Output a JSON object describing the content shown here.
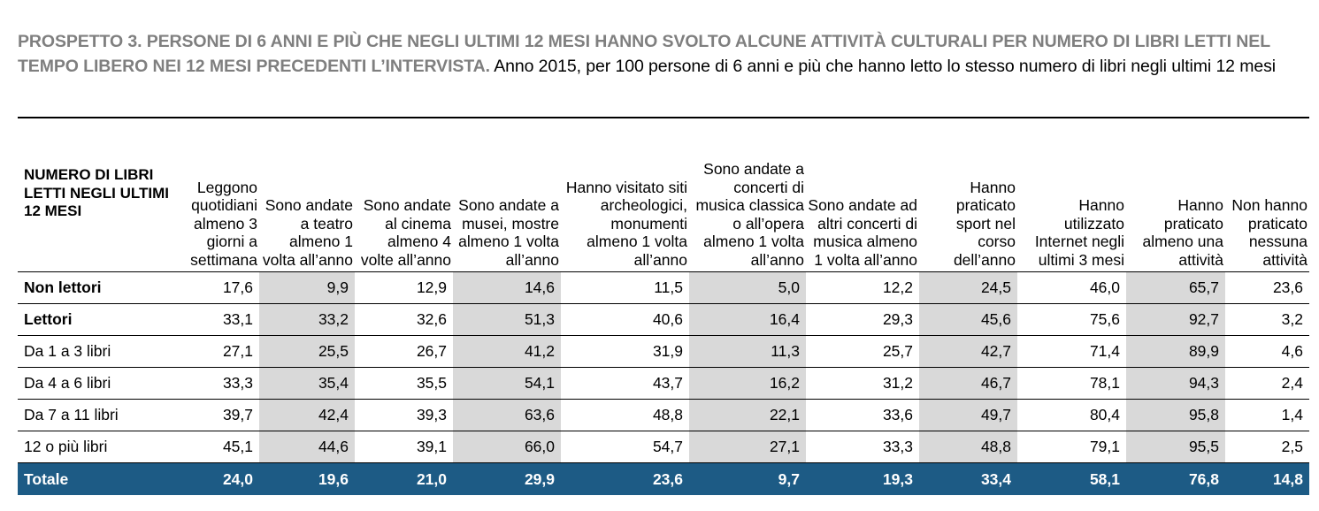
{
  "title": {
    "bold": "PROSPETTO 3. PERSONE DI 6 ANNI E PIÙ CHE NEGLI ULTIMI 12 MESI HANNO SVOLTO ALCUNE ATTIVITÀ CULTURALI PER NUMERO DI LIBRI LETTI NEL TEMPO LIBERO NEI 12 MESI PRECEDENTI L’INTERVISTA.",
    "normal": " Anno 2015, per 100 persone di 6 anni e più che hanno letto lo stesso numero di libri negli ultimi 12 mesi"
  },
  "table": {
    "header_first": "NUMERO DI LIBRI LETTI NEGLI ULTIMI 12 MESI",
    "columns": [
      "Leggono quotidiani almeno 3 giorni a settimana",
      "Sono andate a teatro almeno 1 volta all’anno",
      "Sono andate al cinema almeno 4 volte all’anno",
      "Sono andate a musei, mostre almeno 1 volta all’anno",
      "Hanno visitato siti archeologici, monumenti almeno 1 volta all’anno",
      "Sono andate a concerti di musica classica o all’opera almeno 1 volta all’anno",
      "Sono andate ad altri concerti di musica almeno 1 volta all’anno",
      "Hanno praticato sport nel corso dell’anno",
      "Hanno utilizzato Internet negli ultimi 3 mesi",
      "Hanno praticato almeno una attività",
      "Non hanno praticato nessuna attività"
    ],
    "rows": [
      {
        "label": "Non lettori",
        "values": [
          "17,6",
          "9,9",
          "12,9",
          "14,6",
          "11,5",
          "5,0",
          "12,2",
          "24,5",
          "46,0",
          "65,7",
          "23,6"
        ]
      },
      {
        "label": "Lettori",
        "values": [
          "33,1",
          "33,2",
          "32,6",
          "51,3",
          "40,6",
          "16,4",
          "29,3",
          "45,6",
          "75,6",
          "92,7",
          "3,2"
        ]
      },
      {
        "label": "Da 1 a 3 libri",
        "values": [
          "27,1",
          "25,5",
          "26,7",
          "41,2",
          "31,9",
          "11,3",
          "25,7",
          "42,7",
          "71,4",
          "89,9",
          "4,6"
        ]
      },
      {
        "label": "Da 4 a 6 libri",
        "values": [
          "33,3",
          "35,4",
          "35,5",
          "54,1",
          "43,7",
          "16,2",
          "31,2",
          "46,7",
          "78,1",
          "94,3",
          "2,4"
        ]
      },
      {
        "label": "Da 7 a 11 libri",
        "values": [
          "39,7",
          "42,4",
          "39,3",
          "63,6",
          "48,8",
          "22,1",
          "33,6",
          "49,7",
          "80,4",
          "95,8",
          "1,4"
        ]
      },
      {
        "label": "12 o più libri",
        "values": [
          "45,1",
          "44,6",
          "39,1",
          "66,0",
          "54,7",
          "27,1",
          "33,3",
          "48,8",
          "79,1",
          "95,5",
          "2,5"
        ]
      },
      {
        "label": "Totale",
        "values": [
          "24,0",
          "19,6",
          "21,0",
          "29,9",
          "23,6",
          "9,7",
          "19,3",
          "33,4",
          "58,1",
          "76,8",
          "14,8"
        ]
      }
    ]
  },
  "colors": {
    "shade": "#d9d9d9",
    "total_bg": "#1d5b85"
  }
}
